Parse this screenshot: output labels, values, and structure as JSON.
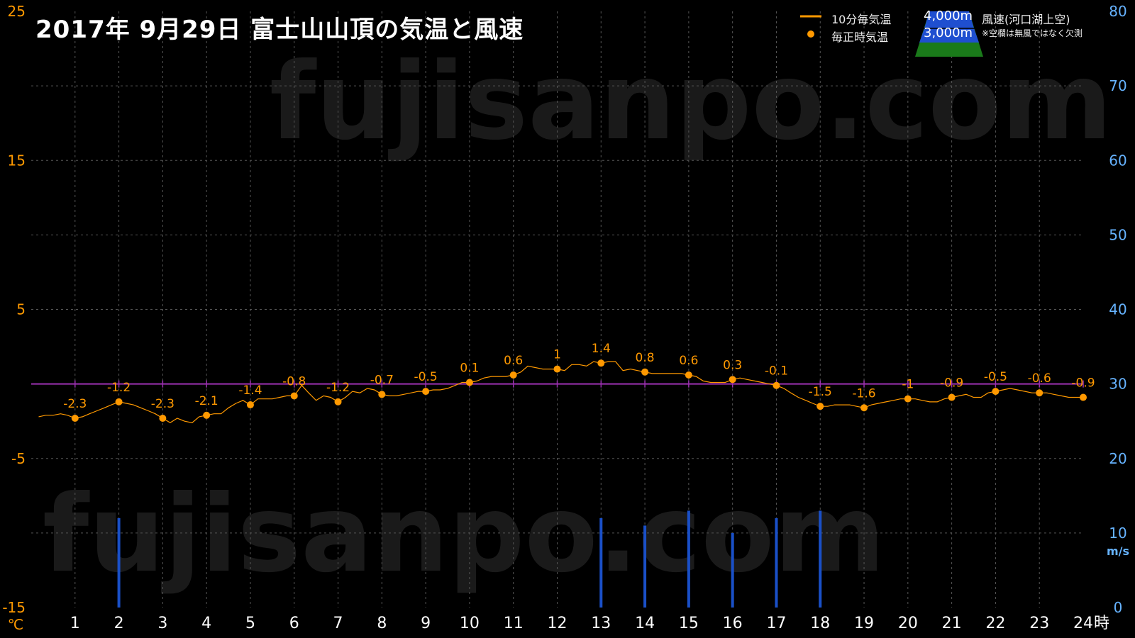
{
  "title": "2017年  9月29日   富士山山頂の気温と風速",
  "watermark": "fujisanpo.com",
  "legend": {
    "temp_10min": "10分毎気温",
    "temp_hourly": "毎正時気温",
    "wind_title": "風速(河口湖上空)",
    "alt_4000": "4,000m",
    "alt_3000": "3,000m",
    "note": "※空欄は無風ではなく欠測"
  },
  "axis": {
    "left_unit": "℃",
    "right_unit": "m/s",
    "x_unit": "時",
    "left_ticks": [
      25,
      15,
      5,
      -5,
      -15
    ],
    "right_ticks": [
      80,
      70,
      60,
      50,
      40,
      30,
      20,
      10,
      0
    ],
    "x_ticks": [
      1,
      2,
      3,
      4,
      5,
      6,
      7,
      8,
      9,
      10,
      11,
      12,
      13,
      14,
      15,
      16,
      17,
      18,
      19,
      20,
      21,
      22,
      23,
      24
    ]
  },
  "colors": {
    "temp": "#ff9900",
    "wind": "#1a50c8",
    "zero_line": "#9b30b0",
    "left_axis_text": "#ff9900",
    "right_axis_text": "#66b3ff",
    "grid": "#555555"
  },
  "chart_data": {
    "type": "line",
    "x_range": [
      0,
      24
    ],
    "y_left_range": [
      -15,
      25
    ],
    "y_right_range": [
      0,
      80
    ],
    "hourly_temps": [
      {
        "x": 1,
        "y": -2.3
      },
      {
        "x": 2,
        "y": -1.2
      },
      {
        "x": 3,
        "y": -2.3
      },
      {
        "x": 4,
        "y": -2.1
      },
      {
        "x": 5,
        "y": -1.4
      },
      {
        "x": 6,
        "y": -0.8
      },
      {
        "x": 7,
        "y": -1.2
      },
      {
        "x": 8,
        "y": -0.7
      },
      {
        "x": 9,
        "y": -0.5
      },
      {
        "x": 10,
        "y": 0.1
      },
      {
        "x": 11,
        "y": 0.6
      },
      {
        "x": 12,
        "y": 1
      },
      {
        "x": 13,
        "y": 1.4
      },
      {
        "x": 14,
        "y": 0.8
      },
      {
        "x": 15,
        "y": 0.6
      },
      {
        "x": 16,
        "y": 0.3
      },
      {
        "x": 17,
        "y": -0.1
      },
      {
        "x": 18,
        "y": -1.5
      },
      {
        "x": 19,
        "y": -1.6
      },
      {
        "x": 20,
        "y": -1
      },
      {
        "x": 21,
        "y": -0.9
      },
      {
        "x": 22,
        "y": -0.5
      },
      {
        "x": 23,
        "y": -0.6
      },
      {
        "x": 24,
        "y": -0.9
      }
    ],
    "temps_10min": [
      {
        "x": 0.17,
        "y": -2.2
      },
      {
        "x": 0.33,
        "y": -2.1
      },
      {
        "x": 0.5,
        "y": -2.1
      },
      {
        "x": 0.67,
        "y": -2.0
      },
      {
        "x": 0.83,
        "y": -2.1
      },
      {
        "x": 1.0,
        "y": -2.3
      },
      {
        "x": 1.17,
        "y": -2.2
      },
      {
        "x": 1.33,
        "y": -2.0
      },
      {
        "x": 1.5,
        "y": -1.8
      },
      {
        "x": 1.67,
        "y": -1.6
      },
      {
        "x": 1.83,
        "y": -1.4
      },
      {
        "x": 2.0,
        "y": -1.2
      },
      {
        "x": 2.17,
        "y": -1.3
      },
      {
        "x": 2.33,
        "y": -1.4
      },
      {
        "x": 2.5,
        "y": -1.6
      },
      {
        "x": 2.67,
        "y": -1.8
      },
      {
        "x": 2.83,
        "y": -2.0
      },
      {
        "x": 3.0,
        "y": -2.3
      },
      {
        "x": 3.17,
        "y": -2.6
      },
      {
        "x": 3.33,
        "y": -2.3
      },
      {
        "x": 3.5,
        "y": -2.5
      },
      {
        "x": 3.67,
        "y": -2.6
      },
      {
        "x": 3.83,
        "y": -2.2
      },
      {
        "x": 4.0,
        "y": -2.1
      },
      {
        "x": 4.17,
        "y": -2.0
      },
      {
        "x": 4.33,
        "y": -2.0
      },
      {
        "x": 4.5,
        "y": -1.6
      },
      {
        "x": 4.67,
        "y": -1.3
      },
      {
        "x": 4.83,
        "y": -1.1
      },
      {
        "x": 5.0,
        "y": -1.4
      },
      {
        "x": 5.17,
        "y": -1.0
      },
      {
        "x": 5.33,
        "y": -1.0
      },
      {
        "x": 5.5,
        "y": -1.0
      },
      {
        "x": 5.67,
        "y": -0.9
      },
      {
        "x": 5.83,
        "y": -0.8
      },
      {
        "x": 6.0,
        "y": -0.8
      },
      {
        "x": 6.17,
        "y": -0.1
      },
      {
        "x": 6.33,
        "y": -0.6
      },
      {
        "x": 6.5,
        "y": -1.1
      },
      {
        "x": 6.67,
        "y": -0.8
      },
      {
        "x": 6.83,
        "y": -0.9
      },
      {
        "x": 7.0,
        "y": -1.2
      },
      {
        "x": 7.17,
        "y": -0.9
      },
      {
        "x": 7.33,
        "y": -0.5
      },
      {
        "x": 7.5,
        "y": -0.6
      },
      {
        "x": 7.67,
        "y": -0.3
      },
      {
        "x": 7.83,
        "y": -0.4
      },
      {
        "x": 8.0,
        "y": -0.7
      },
      {
        "x": 8.17,
        "y": -0.8
      },
      {
        "x": 8.33,
        "y": -0.8
      },
      {
        "x": 8.5,
        "y": -0.7
      },
      {
        "x": 8.67,
        "y": -0.6
      },
      {
        "x": 8.83,
        "y": -0.5
      },
      {
        "x": 9.0,
        "y": -0.5
      },
      {
        "x": 9.17,
        "y": -0.4
      },
      {
        "x": 9.33,
        "y": -0.4
      },
      {
        "x": 9.5,
        "y": -0.3
      },
      {
        "x": 9.67,
        "y": -0.1
      },
      {
        "x": 9.83,
        "y": 0.1
      },
      {
        "x": 10.0,
        "y": 0.1
      },
      {
        "x": 10.17,
        "y": 0.2
      },
      {
        "x": 10.33,
        "y": 0.4
      },
      {
        "x": 10.5,
        "y": 0.5
      },
      {
        "x": 10.67,
        "y": 0.5
      },
      {
        "x": 10.83,
        "y": 0.5
      },
      {
        "x": 11.0,
        "y": 0.6
      },
      {
        "x": 11.17,
        "y": 0.8
      },
      {
        "x": 11.33,
        "y": 1.2
      },
      {
        "x": 11.5,
        "y": 1.1
      },
      {
        "x": 11.67,
        "y": 1.0
      },
      {
        "x": 11.83,
        "y": 1.0
      },
      {
        "x": 12.0,
        "y": 1.0
      },
      {
        "x": 12.17,
        "y": 0.9
      },
      {
        "x": 12.33,
        "y": 1.3
      },
      {
        "x": 12.5,
        "y": 1.3
      },
      {
        "x": 12.67,
        "y": 1.2
      },
      {
        "x": 12.83,
        "y": 1.5
      },
      {
        "x": 13.0,
        "y": 1.4
      },
      {
        "x": 13.17,
        "y": 1.5
      },
      {
        "x": 13.33,
        "y": 1.5
      },
      {
        "x": 13.5,
        "y": 0.9
      },
      {
        "x": 13.67,
        "y": 1.0
      },
      {
        "x": 13.83,
        "y": 0.9
      },
      {
        "x": 14.0,
        "y": 0.8
      },
      {
        "x": 14.17,
        "y": 0.7
      },
      {
        "x": 14.33,
        "y": 0.7
      },
      {
        "x": 14.5,
        "y": 0.7
      },
      {
        "x": 14.67,
        "y": 0.7
      },
      {
        "x": 14.83,
        "y": 0.7
      },
      {
        "x": 15.0,
        "y": 0.6
      },
      {
        "x": 15.17,
        "y": 0.5
      },
      {
        "x": 15.33,
        "y": 0.2
      },
      {
        "x": 15.5,
        "y": 0.1
      },
      {
        "x": 15.67,
        "y": 0.1
      },
      {
        "x": 15.83,
        "y": 0.1
      },
      {
        "x": 16.0,
        "y": 0.3
      },
      {
        "x": 16.17,
        "y": 0.4
      },
      {
        "x": 16.33,
        "y": 0.3
      },
      {
        "x": 16.5,
        "y": 0.2
      },
      {
        "x": 16.67,
        "y": 0.1
      },
      {
        "x": 16.83,
        "y": 0.0
      },
      {
        "x": 17.0,
        "y": -0.1
      },
      {
        "x": 17.17,
        "y": -0.3
      },
      {
        "x": 17.33,
        "y": -0.6
      },
      {
        "x": 17.5,
        "y": -0.9
      },
      {
        "x": 17.67,
        "y": -1.1
      },
      {
        "x": 17.83,
        "y": -1.3
      },
      {
        "x": 18.0,
        "y": -1.5
      },
      {
        "x": 18.17,
        "y": -1.5
      },
      {
        "x": 18.33,
        "y": -1.4
      },
      {
        "x": 18.5,
        "y": -1.4
      },
      {
        "x": 18.67,
        "y": -1.4
      },
      {
        "x": 18.83,
        "y": -1.5
      },
      {
        "x": 19.0,
        "y": -1.6
      },
      {
        "x": 19.17,
        "y": -1.4
      },
      {
        "x": 19.33,
        "y": -1.3
      },
      {
        "x": 19.5,
        "y": -1.2
      },
      {
        "x": 19.67,
        "y": -1.1
      },
      {
        "x": 19.83,
        "y": -1.0
      },
      {
        "x": 20.0,
        "y": -1.0
      },
      {
        "x": 20.17,
        "y": -1.0
      },
      {
        "x": 20.33,
        "y": -1.1
      },
      {
        "x": 20.5,
        "y": -1.2
      },
      {
        "x": 20.67,
        "y": -1.2
      },
      {
        "x": 20.83,
        "y": -1.0
      },
      {
        "x": 21.0,
        "y": -0.9
      },
      {
        "x": 21.17,
        "y": -0.8
      },
      {
        "x": 21.33,
        "y": -0.7
      },
      {
        "x": 21.5,
        "y": -0.9
      },
      {
        "x": 21.67,
        "y": -0.9
      },
      {
        "x": 21.83,
        "y": -0.6
      },
      {
        "x": 22.0,
        "y": -0.5
      },
      {
        "x": 22.17,
        "y": -0.4
      },
      {
        "x": 22.33,
        "y": -0.3
      },
      {
        "x": 22.5,
        "y": -0.4
      },
      {
        "x": 22.67,
        "y": -0.5
      },
      {
        "x": 22.83,
        "y": -0.6
      },
      {
        "x": 23.0,
        "y": -0.6
      },
      {
        "x": 23.17,
        "y": -0.6
      },
      {
        "x": 23.33,
        "y": -0.7
      },
      {
        "x": 23.5,
        "y": -0.8
      },
      {
        "x": 23.67,
        "y": -0.9
      },
      {
        "x": 23.83,
        "y": -0.9
      },
      {
        "x": 24.0,
        "y": -0.9
      }
    ],
    "wind_speed_3000m": [
      {
        "x": 2,
        "v": 12
      },
      {
        "x": 13,
        "v": 12
      },
      {
        "x": 14,
        "v": 11
      },
      {
        "x": 15,
        "v": 13
      },
      {
        "x": 16,
        "v": 10
      },
      {
        "x": 17,
        "v": 12
      },
      {
        "x": 18,
        "v": 13
      }
    ]
  }
}
